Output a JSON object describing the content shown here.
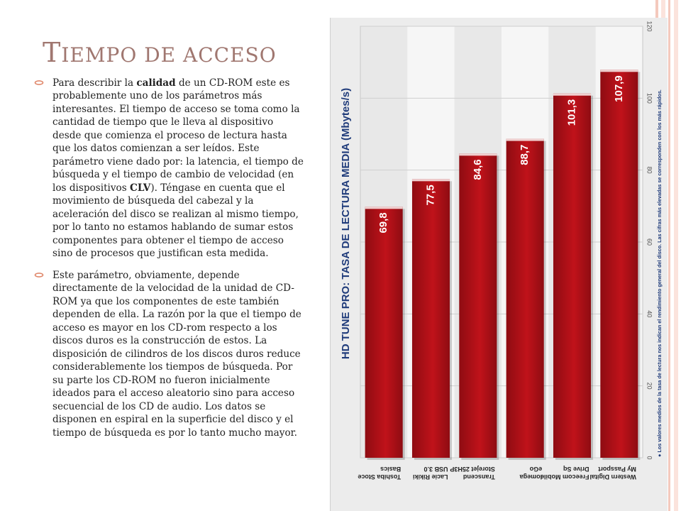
{
  "title": {
    "initial": "T",
    "rest": "iempo de acceso"
  },
  "bullets": [
    {
      "p1": "Para describir la ",
      "b1": "calidad",
      "p2": " de un CD-ROM este es probablemente uno de los parámetros más interesantes. El tiempo de acceso se toma como la cantidad de tiempo que le lleva al dispositivo desde que comienza el proceso de lectura hasta que los datos comienzan a ser leídos. Este parámetro viene dado por: la latencia, el tiempo de búsqueda y el tiempo de cambio de velocidad (en los dispositivos ",
      "b2": "CLV",
      "p3": "). Téngase en cuenta que el movimiento de búsqueda del cabezal y la aceleración del disco se realizan al mismo tiempo, por lo tanto no estamos hablando de sumar estos componentes para obtener el tiempo de acceso sino de procesos que justifican esta medida."
    },
    {
      "text": "Este parámetro, obviamente, depende directamente de la velocidad de la unidad de CD-ROM ya que los componentes de este también dependen de ella. La razón por la que el tiempo de acceso es mayor en los CD-rom respecto a los discos duros es la construcción de estos. La disposición de cilindros de los discos duros reduce considerablemente los tiempos de búsqueda. Por su parte los CD-ROM no fueron inicialmente ideados para el acceso aleatorio sino para acceso secuencial de los CD de audio. Los datos se disponen en espiral en la superficie del disco y el tiempo de búsqueda es por lo tanto mucho mayor."
    }
  ],
  "colors": {
    "title": "#a07770",
    "bullet": "#e0876a",
    "bar": "#c0121a",
    "bar_dark": "#8e0c12",
    "ylabel": "#1f3b7a",
    "stripe_a": "#f4c9bd",
    "stripe_b": "#fbe3dc"
  },
  "chart_data": {
    "type": "bar",
    "orientation": "rotated-90",
    "title": "HD TUNE PRO: TASA DE LECTURA MEDIA (Mbytes/s)",
    "footnote": "● Los valores medios de la tasa de lectura nos indican el rendimiento general del disco. Las cifras más elevadas se corresponden con los más rápidos.",
    "categories": [
      [
        "Toshiba Stoce",
        "Basics"
      ],
      [
        "Lacie Rikiki",
        "USB 3.0"
      ],
      [
        "Transcend",
        "Storejet 25H3P"
      ],
      [
        "Iomega",
        "eGo"
      ],
      [
        "Freecom Mobile",
        "Drive Sq"
      ],
      [
        "Western Digital",
        "My Passport"
      ]
    ],
    "values": [
      69.8,
      77.5,
      84.6,
      88.7,
      101.3,
      107.9
    ],
    "value_labels": [
      "69,8",
      "77,5",
      "84,6",
      "88,7",
      "101,3",
      "107,9"
    ],
    "ylim": [
      0,
      120
    ],
    "ticks": [
      0,
      20,
      40,
      60,
      80,
      100,
      120
    ],
    "grid": true
  }
}
